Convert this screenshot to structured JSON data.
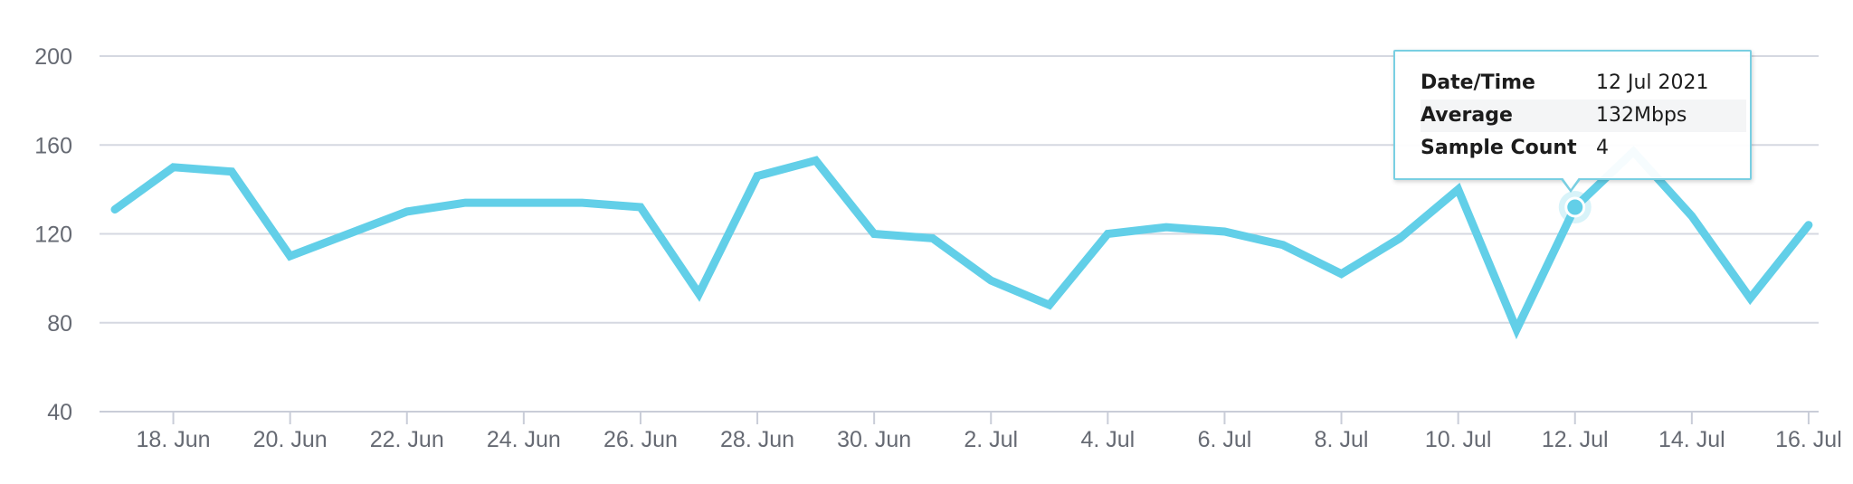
{
  "chart_data": {
    "type": "line",
    "title": "",
    "xlabel": "",
    "ylabel": "",
    "ylim": [
      40,
      200
    ],
    "yticks": [
      40,
      80,
      120,
      160,
      200
    ],
    "grid": true,
    "x": [
      "17 Jun",
      "18 Jun",
      "19 Jun",
      "20 Jun",
      "21 Jun",
      "22 Jun",
      "23 Jun",
      "24 Jun",
      "25 Jun",
      "26 Jun",
      "27 Jun",
      "28 Jun",
      "29 Jun",
      "30 Jun",
      "1 Jul",
      "2 Jul",
      "3 Jul",
      "4 Jul",
      "5 Jul",
      "6 Jul",
      "7 Jul",
      "8 Jul",
      "9 Jul",
      "10 Jul",
      "11 Jul",
      "12 Jul",
      "13 Jul",
      "14 Jul",
      "15 Jul",
      "16 Jul"
    ],
    "xtick_labels": [
      "18. Jun",
      "20. Jun",
      "22. Jun",
      "24. Jun",
      "26. Jun",
      "28. Jun",
      "30. Jun",
      "2. Jul",
      "4. Jul",
      "6. Jul",
      "8. Jul",
      "10. Jul",
      "12. Jul",
      "14. Jul",
      "16. Jul"
    ],
    "series": [
      {
        "values": [
          131,
          150,
          148,
          110,
          120,
          130,
          134,
          134,
          134,
          132,
          93,
          146,
          153,
          120,
          118,
          99,
          88,
          120,
          123,
          121,
          115,
          102,
          118,
          140,
          77,
          132,
          157,
          128,
          91,
          124
        ]
      }
    ],
    "colors": {
      "line": "#62cfe8",
      "grid": "#d5d8e1",
      "tooltip_border": "#79cfe2"
    },
    "highlight_index": 25
  },
  "tooltip": {
    "rows": [
      {
        "label": "Date/Time",
        "value": "12 Jul 2021"
      },
      {
        "label": "Average",
        "value": "132Mbps"
      },
      {
        "label": "Sample Count",
        "value": "4"
      }
    ]
  }
}
